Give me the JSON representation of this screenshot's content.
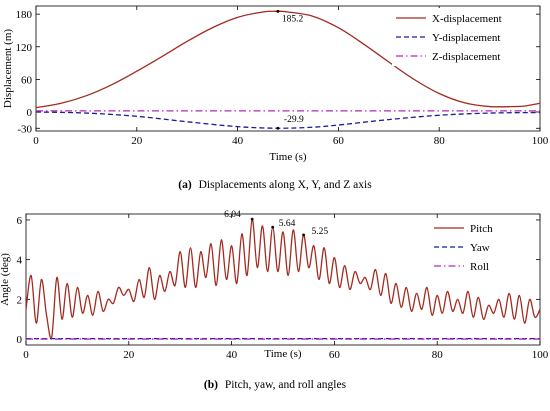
{
  "chart_data": [
    {
      "type": "line",
      "caption_letter": "(a)",
      "caption_text": "Displacements along X, Y, and Z axis",
      "xlabel": "Time (s)",
      "ylabel": "Displacement (m)",
      "xlim": [
        0,
        100
      ],
      "ylim": [
        -35,
        195
      ],
      "xticks": [
        0,
        20,
        40,
        60,
        80,
        100
      ],
      "yticks": [
        -30,
        0,
        60,
        120,
        180
      ],
      "legend_position": "top-right",
      "series": [
        {
          "name": "X-displacement",
          "color": "#a32a1f",
          "style": "solid",
          "x": [
            0,
            5,
            10,
            15,
            20,
            25,
            30,
            35,
            40,
            45,
            48,
            50,
            55,
            60,
            65,
            70,
            75,
            80,
            85,
            90,
            95,
            97,
            100
          ],
          "y": [
            8,
            16,
            30,
            50,
            75,
            102,
            130,
            155,
            174,
            184,
            185.2,
            184,
            176,
            155,
            125,
            92,
            60,
            34,
            17,
            10,
            10,
            11,
            16
          ]
        },
        {
          "name": "Y-displacement",
          "color": "#1c1c9e",
          "style": "dashed",
          "x": [
            0,
            10,
            20,
            30,
            40,
            48,
            55,
            60,
            70,
            80,
            90,
            100
          ],
          "y": [
            0,
            -2,
            -8,
            -18,
            -27,
            -29.9,
            -28,
            -24,
            -14,
            -6,
            -2,
            -1
          ]
        },
        {
          "name": "Z-displacement",
          "color": "#b02ab8",
          "style": "dashdot",
          "x": [
            0,
            50,
            100
          ],
          "y": [
            2,
            2,
            2
          ]
        }
      ],
      "annotations": [
        {
          "x": 48,
          "y": 185.2,
          "text": "185.2"
        },
        {
          "x": 48,
          "y": -29.9,
          "text": "-29.9"
        }
      ]
    },
    {
      "type": "line",
      "caption_letter": "(b)",
      "caption_text": "Pitch, yaw, and roll angles",
      "xlabel": "Time (s)",
      "ylabel": "Angle (deg)",
      "xlim": [
        0,
        100
      ],
      "ylim": [
        -0.3,
        6.3
      ],
      "xticks": [
        0,
        20,
        40,
        60,
        80,
        100
      ],
      "yticks": [
        0,
        2,
        4,
        6
      ],
      "legend_position": "top-right",
      "series": [
        {
          "name": "Pitch",
          "color": "#a32a1f",
          "style": "solid",
          "x": [
            0,
            1,
            2,
            3,
            4,
            5,
            6,
            7,
            8,
            9,
            10,
            11,
            12,
            13,
            14,
            15,
            16,
            17,
            18,
            19,
            20,
            21,
            22,
            23,
            24,
            25,
            26,
            27,
            28,
            29,
            30,
            31,
            32,
            33,
            34,
            35,
            36,
            37,
            38,
            39,
            40,
            41,
            42,
            43,
            44,
            45,
            46,
            47,
            48,
            49,
            50,
            51,
            52,
            53,
            54,
            55,
            56,
            57,
            58,
            59,
            60,
            61,
            62,
            63,
            64,
            65,
            66,
            67,
            68,
            69,
            70,
            71,
            72,
            73,
            74,
            75,
            76,
            77,
            78,
            79,
            80,
            81,
            82,
            83,
            84,
            85,
            86,
            87,
            88,
            89,
            90,
            91,
            92,
            93,
            94,
            95,
            96,
            97,
            98,
            99,
            100
          ],
          "y": [
            1.5,
            3.2,
            0.8,
            3.0,
            1.2,
            0.1,
            3.1,
            1.0,
            2.8,
            1.1,
            2.6,
            1.3,
            2.2,
            1.2,
            2.4,
            1.4,
            2.0,
            1.8,
            2.6,
            2.2,
            2.5,
            1.9,
            3.0,
            2.1,
            3.6,
            2.0,
            3.2,
            2.4,
            3.4,
            2.7,
            4.4,
            2.6,
            4.6,
            2.6,
            4.4,
            3.1,
            4.8,
            2.7,
            5.0,
            3.0,
            4.7,
            2.8,
            5.3,
            3.2,
            6.04,
            3.6,
            5.7,
            3.4,
            5.64,
            3.4,
            5.4,
            3.2,
            5.5,
            3.4,
            5.25,
            3.6,
            4.7,
            3.0,
            4.6,
            2.8,
            4.1,
            2.6,
            3.7,
            2.5,
            3.4,
            2.8,
            3.1,
            2.5,
            3.5,
            2.2,
            3.3,
            1.8,
            2.8,
            1.6,
            2.6,
            1.4,
            2.3,
            1.5,
            2.6,
            1.2,
            2.2,
            1.3,
            2.4,
            1.4,
            2.0,
            1.3,
            2.4,
            1.1,
            2.1,
            1.0,
            1.7,
            1.3,
            2.0,
            1.1,
            2.3,
            1.0,
            2.2,
            0.8,
            2.0,
            1.1,
            1.5
          ]
        },
        {
          "name": "Yaw",
          "color": "#1c1c9e",
          "style": "dashed",
          "x": [
            0,
            50,
            100
          ],
          "y": [
            0.02,
            0.02,
            0.02
          ]
        },
        {
          "name": "Roll",
          "color": "#b02ab8",
          "style": "dashdot",
          "x": [
            0,
            50,
            100
          ],
          "y": [
            0.0,
            0.0,
            0.0
          ]
        }
      ],
      "annotations": [
        {
          "x": 44,
          "y": 6.04,
          "text": "6.04"
        },
        {
          "x": 48,
          "y": 5.64,
          "text": "5.64"
        },
        {
          "x": 54,
          "y": 5.25,
          "text": "5.25"
        }
      ]
    }
  ]
}
